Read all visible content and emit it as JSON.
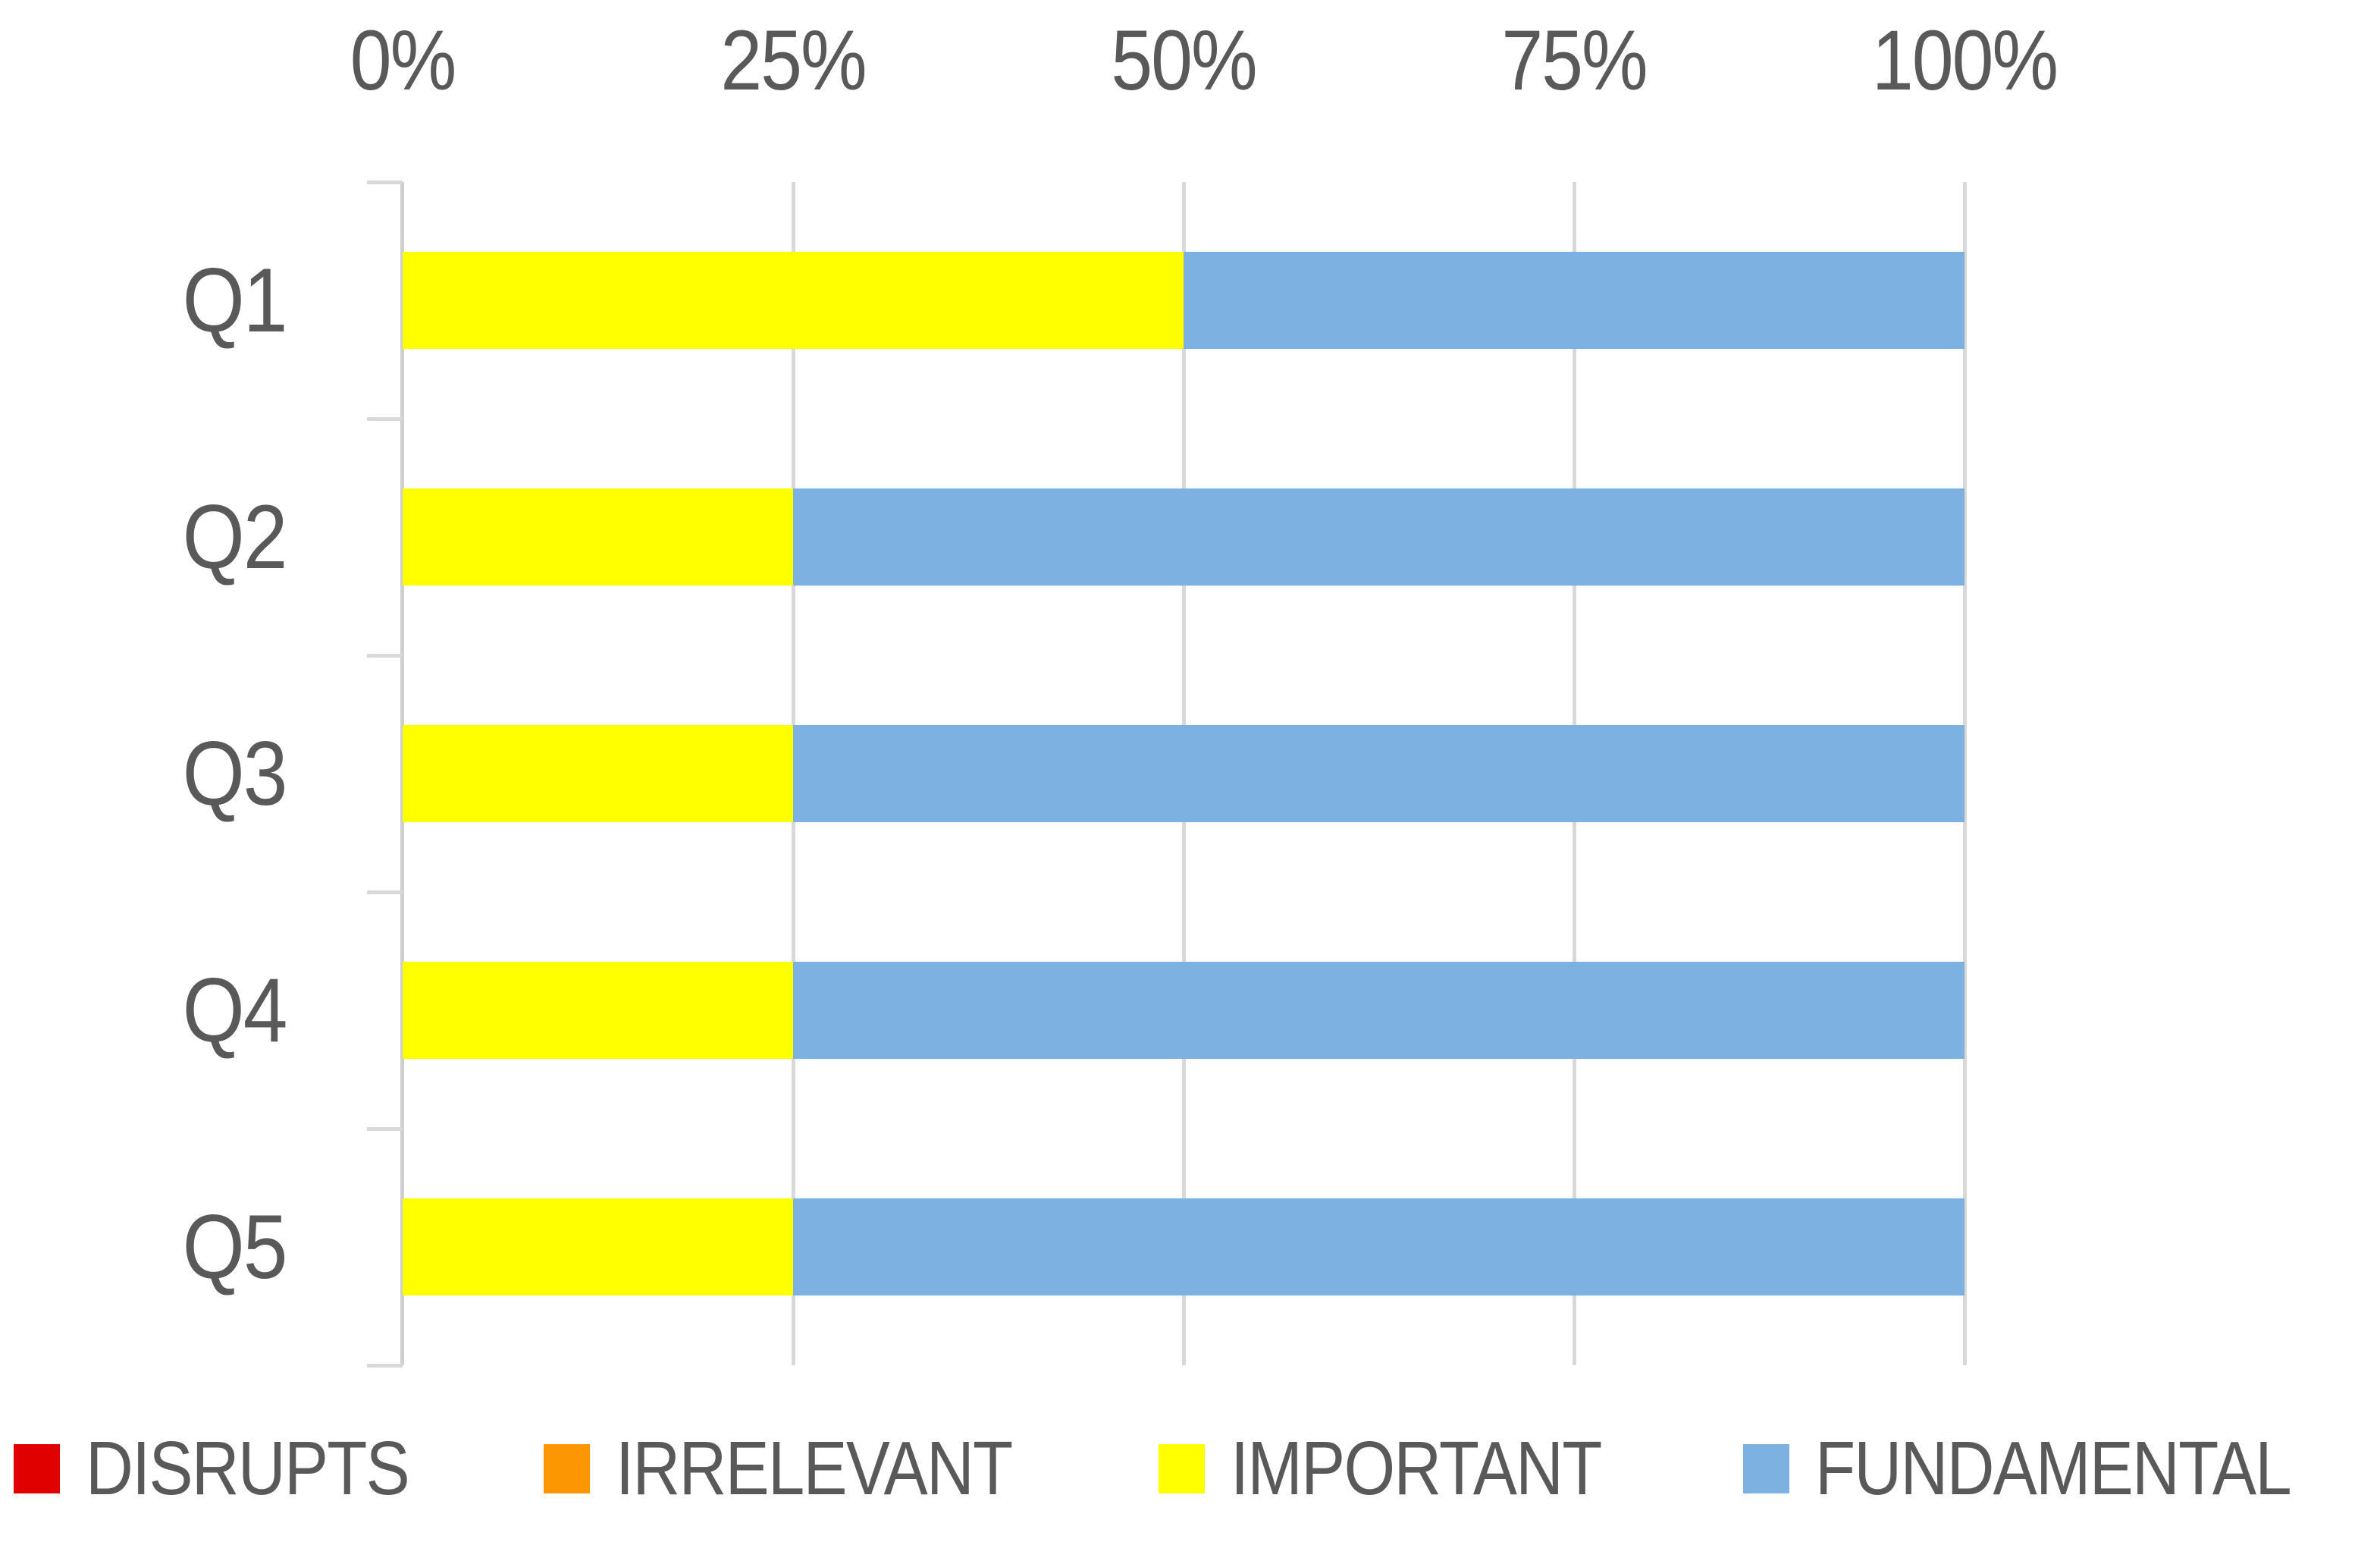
{
  "chart_data": {
    "type": "bar",
    "orientation": "horizontal",
    "stacked": true,
    "units": "percent",
    "categories": [
      "Q1",
      "Q2",
      "Q3",
      "Q4",
      "Q5"
    ],
    "series": [
      {
        "name": "DISRUPTS",
        "color": "#e00000",
        "values": [
          0,
          0,
          0,
          0,
          0
        ]
      },
      {
        "name": "IRRELEVANT",
        "color": "#fc9603",
        "values": [
          0,
          0,
          0,
          0,
          0
        ]
      },
      {
        "name": "IMPORTANT",
        "color": "#ffff00",
        "values": [
          50,
          25,
          25,
          25,
          25
        ]
      },
      {
        "name": "FUNDAMENTAL",
        "color": "#7cb1e2",
        "values": [
          50,
          75,
          75,
          75,
          75
        ]
      }
    ],
    "x_axis": {
      "position": "top",
      "min": 0,
      "max": 100,
      "tick_labels": [
        "0%",
        "25%",
        "50%",
        "75%",
        "100%"
      ]
    },
    "grid": true,
    "legend_position": "bottom"
  },
  "colors": {
    "grid": "#d9d9d9",
    "axis": "#cfcfcf",
    "text": "#595959",
    "background": "#ffffff"
  }
}
